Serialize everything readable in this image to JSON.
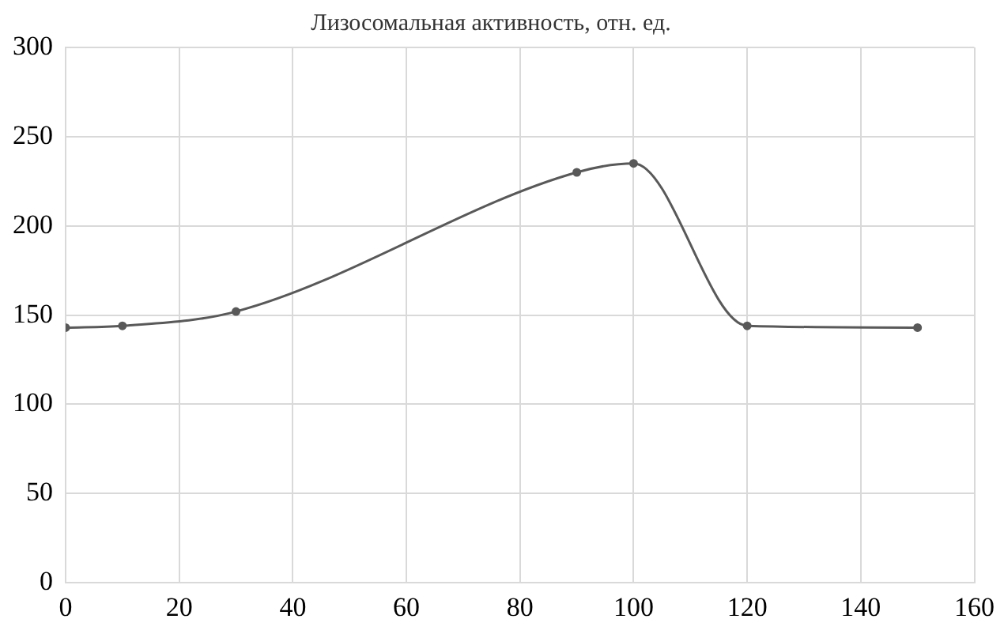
{
  "chart_data": {
    "type": "line",
    "title": "Лизосомальная активность, отн. ед.",
    "x": [
      0,
      10,
      30,
      90,
      100,
      120,
      150
    ],
    "series": [
      {
        "color": "#595959",
        "values": [
          143,
          144,
          152,
          230,
          235,
          144,
          143
        ]
      }
    ],
    "xlim": [
      0,
      160
    ],
    "xticks": [
      0,
      20,
      40,
      60,
      80,
      100,
      120,
      140,
      160
    ],
    "ylim": [
      0,
      300
    ],
    "yticks": [
      0,
      50,
      100,
      150,
      200,
      250,
      300
    ],
    "grid": true,
    "legend": false,
    "marker": "circle",
    "line_style": "solid"
  }
}
